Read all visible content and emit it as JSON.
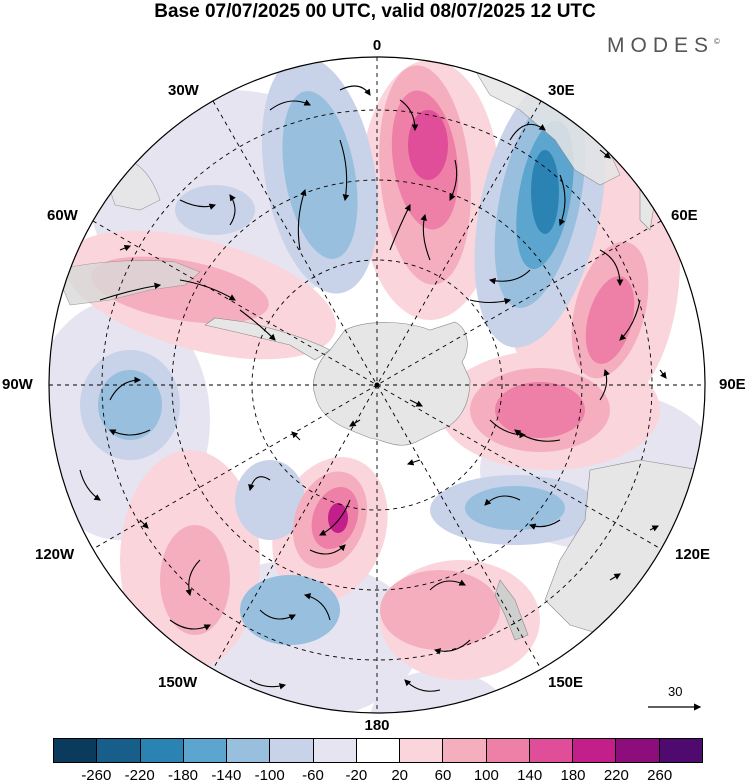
{
  "title": "Base 07/07/2025 00 UTC, valid 08/07/2025 12 UTC",
  "brand": "MODES",
  "brand_mark": "©",
  "longitude_labels": {
    "top": "0",
    "top_left": "30W",
    "top_right": "30E",
    "upper_left": "60W",
    "upper_right": "60E",
    "left": "90W",
    "right": "90E",
    "lower_left": "120W",
    "lower_right": "120E",
    "bottom_left": "150W",
    "bottom_right": "150E",
    "bottom": "180"
  },
  "reference_vector": "30",
  "colorbar": {
    "ticks": [
      "-260",
      "-220",
      "-180",
      "-140",
      "-100",
      "-60",
      "-20",
      "20",
      "60",
      "100",
      "140",
      "180",
      "220",
      "260"
    ],
    "colors": [
      "#0a3a5c",
      "#175e8a",
      "#2b83b4",
      "#5ba5cf",
      "#98bfdd",
      "#c8d2e8",
      "#e5e4f0",
      "#ffffff",
      "#fad6dc",
      "#f5aebe",
      "#ee7fa6",
      "#e04d98",
      "#c21f8a",
      "#8e0d7d",
      "#4e0a6e"
    ]
  },
  "map": {
    "background": "#ffffff",
    "land_color": "#e6e6e6"
  }
}
